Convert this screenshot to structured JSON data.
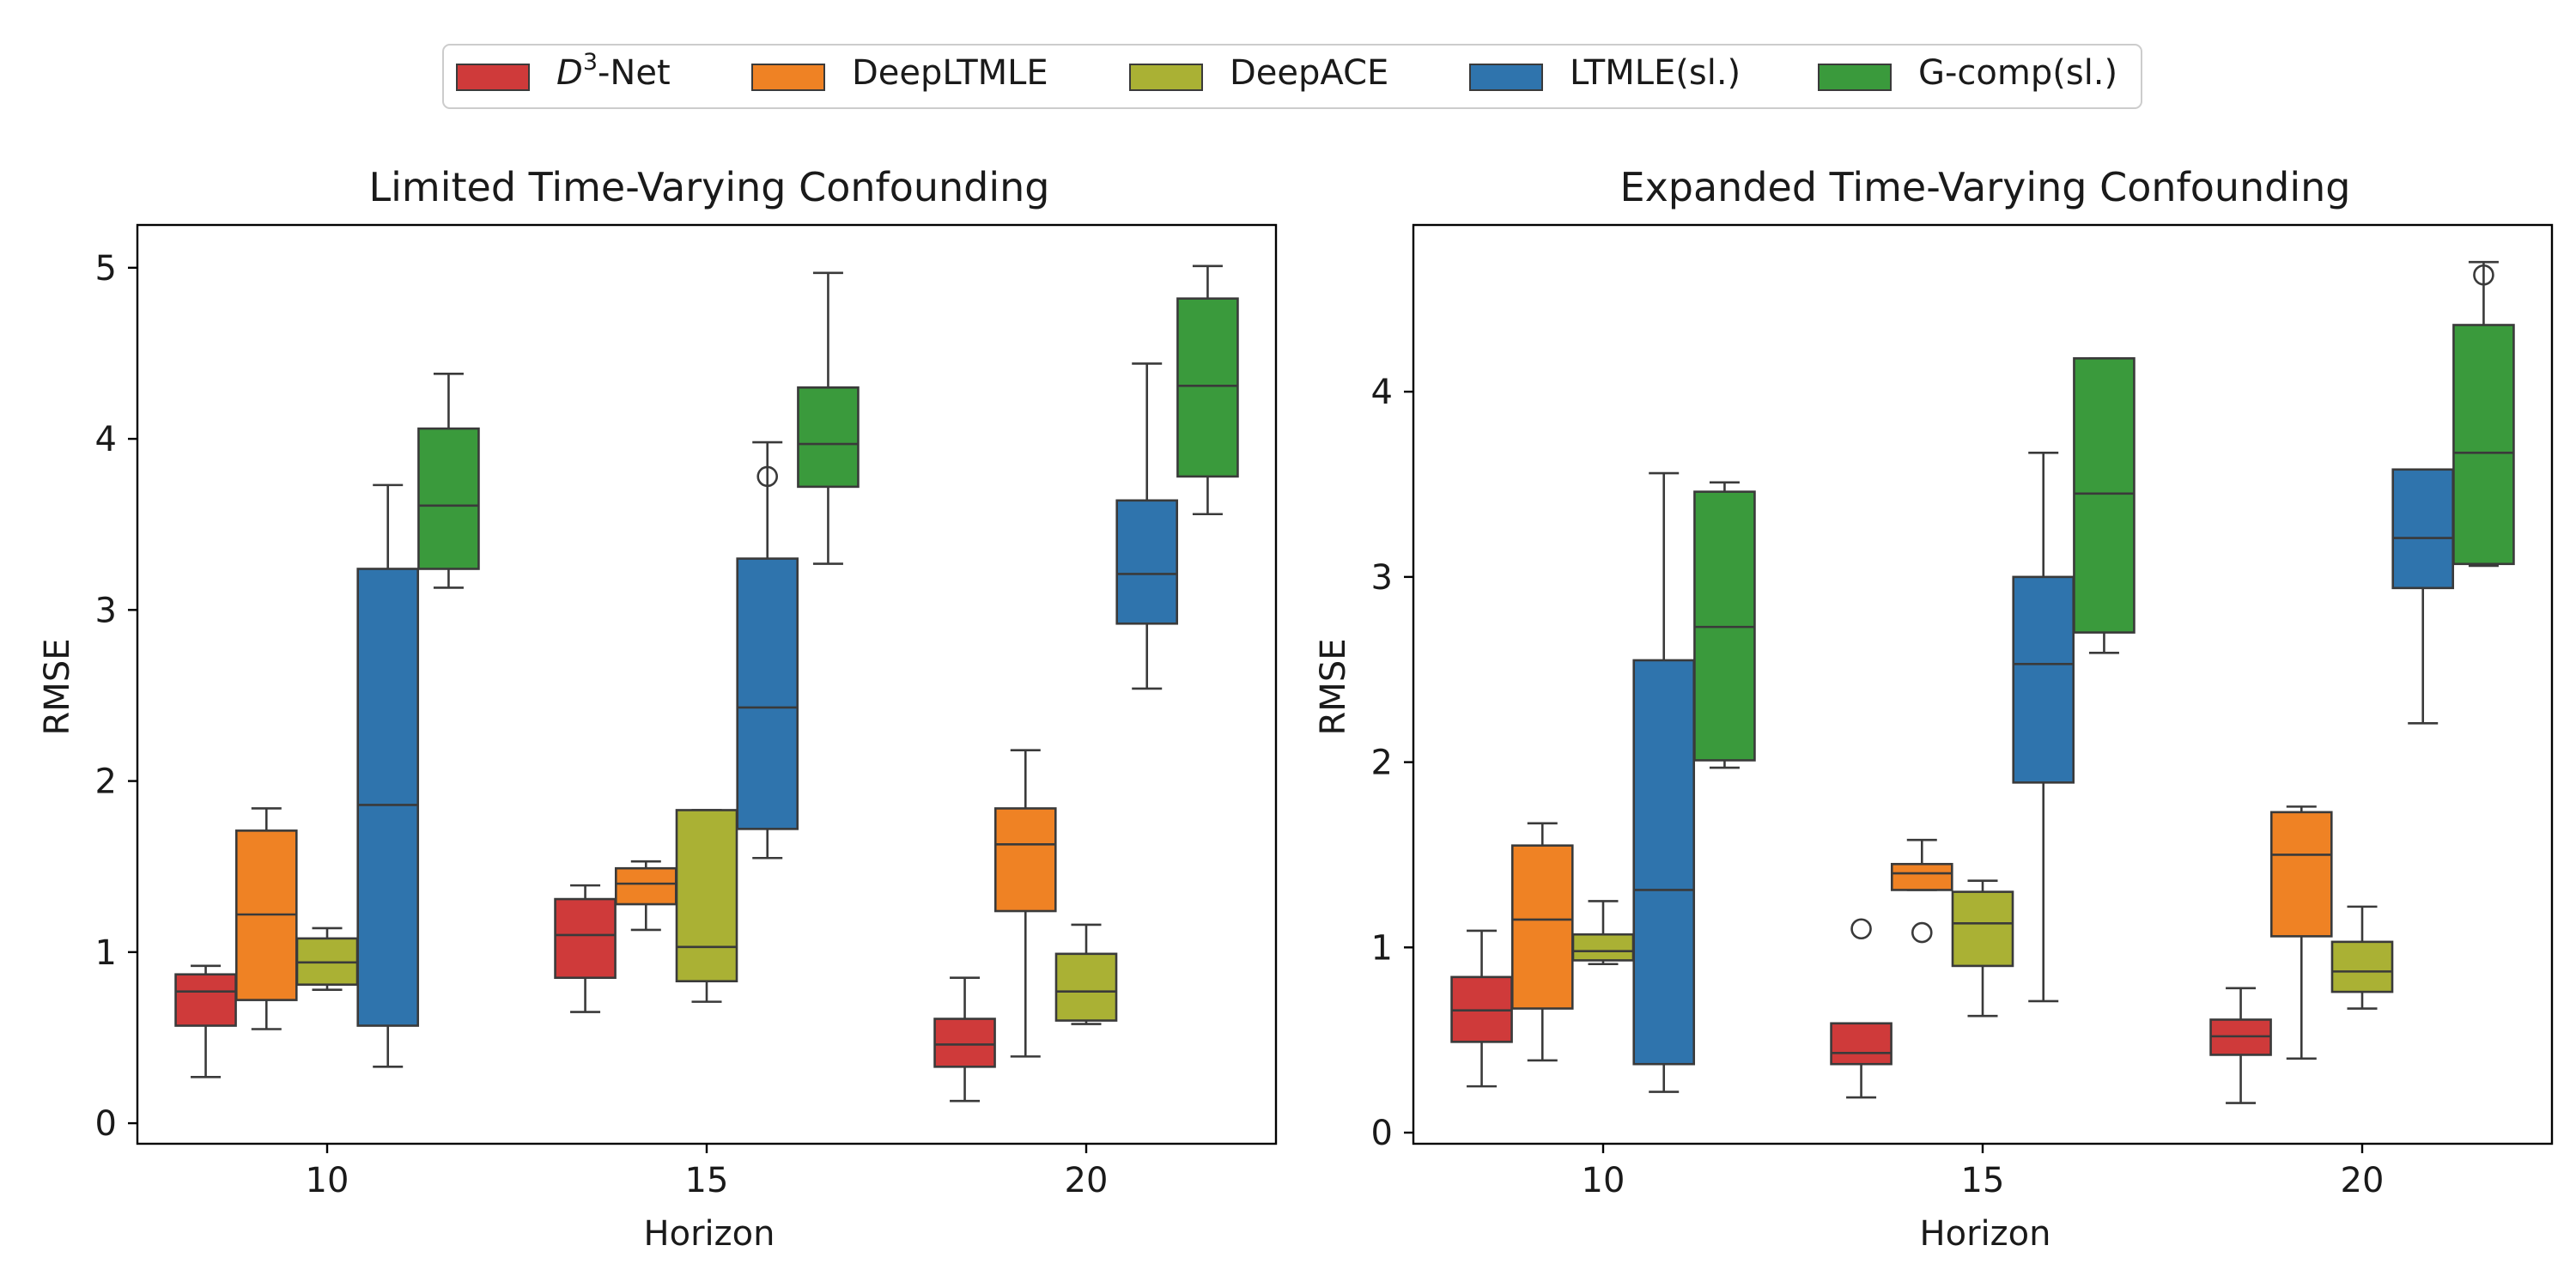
{
  "chart_data": {
    "type": "box",
    "legend": {
      "placement": "top-center",
      "entries": [
        {
          "name": "D³-Net",
          "base": "D",
          "sup": "3",
          "suffix": "-Net",
          "color": "#cf3a3a"
        },
        {
          "name": "DeepLTMLE",
          "color": "#ef8224"
        },
        {
          "name": "DeepACE",
          "color": "#aab134"
        },
        {
          "name": "LTMLE(sl.)",
          "color": "#2f74ad"
        },
        {
          "name": "G-comp(sl.)",
          "color": "#3a9a3c"
        }
      ]
    },
    "panels": [
      {
        "title": "Limited Time-Varying Confounding",
        "xlabel": "Horizon",
        "ylabel": "RMSE",
        "categories": [
          "10",
          "15",
          "20"
        ],
        "yticks": [
          "0",
          "1",
          "2",
          "3",
          "4",
          "5"
        ],
        "ylim": [
          -0.12,
          5.25
        ],
        "series": [
          {
            "name": "D³-Net",
            "boxes": [
              {
                "wlo": 0.27,
                "q1": 0.57,
                "med": 0.77,
                "q3": 0.87,
                "whi": 0.92,
                "outliers": []
              },
              {
                "wlo": 0.65,
                "q1": 0.85,
                "med": 1.1,
                "q3": 1.31,
                "whi": 1.39,
                "outliers": []
              },
              {
                "wlo": 0.13,
                "q1": 0.33,
                "med": 0.46,
                "q3": 0.61,
                "whi": 0.85,
                "outliers": []
              }
            ]
          },
          {
            "name": "DeepLTMLE",
            "boxes": [
              {
                "wlo": 0.55,
                "q1": 0.72,
                "med": 1.22,
                "q3": 1.71,
                "whi": 1.84,
                "outliers": []
              },
              {
                "wlo": 1.13,
                "q1": 1.28,
                "med": 1.4,
                "q3": 1.49,
                "whi": 1.53,
                "outliers": []
              },
              {
                "wlo": 0.39,
                "q1": 1.24,
                "med": 1.63,
                "q3": 1.84,
                "whi": 2.18,
                "outliers": []
              }
            ]
          },
          {
            "name": "DeepACE",
            "boxes": [
              {
                "wlo": 0.78,
                "q1": 0.81,
                "med": 0.94,
                "q3": 1.08,
                "whi": 1.14,
                "outliers": []
              },
              {
                "wlo": 0.71,
                "q1": 0.83,
                "med": 1.03,
                "q3": 1.83,
                "whi": 1.83,
                "outliers": []
              },
              {
                "wlo": 0.58,
                "q1": 0.6,
                "med": 0.77,
                "q3": 0.99,
                "whi": 1.16,
                "outliers": []
              }
            ]
          },
          {
            "name": "LTMLE(sl.)",
            "boxes": [
              {
                "wlo": 0.33,
                "q1": 0.57,
                "med": 1.86,
                "q3": 3.24,
                "whi": 3.73,
                "outliers": []
              },
              {
                "wlo": 1.55,
                "q1": 1.72,
                "med": 2.43,
                "q3": 3.3,
                "whi": 3.98,
                "outliers": [
                  3.78
                ]
              },
              {
                "wlo": 2.54,
                "q1": 2.92,
                "med": 3.21,
                "q3": 3.64,
                "whi": 4.44,
                "outliers": []
              }
            ]
          },
          {
            "name": "G-comp(sl.)",
            "boxes": [
              {
                "wlo": 3.13,
                "q1": 3.24,
                "med": 3.61,
                "q3": 4.06,
                "whi": 4.38,
                "outliers": []
              },
              {
                "wlo": 3.27,
                "q1": 3.72,
                "med": 3.97,
                "q3": 4.3,
                "whi": 4.97,
                "outliers": []
              },
              {
                "wlo": 3.56,
                "q1": 3.78,
                "med": 4.31,
                "q3": 4.82,
                "whi": 5.01,
                "outliers": []
              }
            ]
          }
        ]
      },
      {
        "title": "Expanded Time-Varying Confounding",
        "xlabel": "Horizon",
        "ylabel": "RMSE",
        "categories": [
          "10",
          "15",
          "20"
        ],
        "yticks": [
          "0",
          "1",
          "2",
          "3",
          "4"
        ],
        "ylim": [
          -0.06,
          4.9
        ],
        "series": [
          {
            "name": "D³-Net",
            "boxes": [
              {
                "wlo": 0.25,
                "q1": 0.49,
                "med": 0.66,
                "q3": 0.84,
                "whi": 1.09,
                "outliers": []
              },
              {
                "wlo": 0.19,
                "q1": 0.37,
                "med": 0.43,
                "q3": 0.59,
                "whi": 0.59,
                "outliers": [
                  1.1
                ]
              },
              {
                "wlo": 0.16,
                "q1": 0.42,
                "med": 0.52,
                "q3": 0.61,
                "whi": 0.78,
                "outliers": []
              }
            ]
          },
          {
            "name": "DeepLTMLE",
            "boxes": [
              {
                "wlo": 0.39,
                "q1": 0.67,
                "med": 1.15,
                "q3": 1.55,
                "whi": 1.67,
                "outliers": []
              },
              {
                "wlo": 1.31,
                "q1": 1.31,
                "med": 1.4,
                "q3": 1.45,
                "whi": 1.58,
                "outliers": [
                  1.08
                ]
              },
              {
                "wlo": 0.4,
                "q1": 1.06,
                "med": 1.5,
                "q3": 1.73,
                "whi": 1.76,
                "outliers": []
              }
            ]
          },
          {
            "name": "DeepACE",
            "boxes": [
              {
                "wlo": 0.91,
                "q1": 0.93,
                "med": 0.98,
                "q3": 1.07,
                "whi": 1.25,
                "outliers": []
              },
              {
                "wlo": 0.63,
                "q1": 0.9,
                "med": 1.13,
                "q3": 1.3,
                "whi": 1.36,
                "outliers": []
              },
              {
                "wlo": 0.67,
                "q1": 0.76,
                "med": 0.87,
                "q3": 1.03,
                "whi": 1.22,
                "outliers": []
              }
            ]
          },
          {
            "name": "LTMLE(sl.)",
            "boxes": [
              {
                "wlo": 0.22,
                "q1": 0.37,
                "med": 1.31,
                "q3": 2.55,
                "whi": 3.56,
                "outliers": []
              },
              {
                "wlo": 0.71,
                "q1": 1.89,
                "med": 2.53,
                "q3": 3.0,
                "whi": 3.67,
                "outliers": []
              },
              {
                "wlo": 2.21,
                "q1": 2.94,
                "med": 3.21,
                "q3": 3.58,
                "whi": 3.58,
                "outliers": []
              }
            ]
          },
          {
            "name": "G-comp(sl.)",
            "boxes": [
              {
                "wlo": 1.97,
                "q1": 2.01,
                "med": 2.73,
                "q3": 3.46,
                "whi": 3.51,
                "outliers": []
              },
              {
                "wlo": 2.59,
                "q1": 2.7,
                "med": 3.45,
                "q3": 4.18,
                "whi": 4.18,
                "outliers": []
              },
              {
                "wlo": 3.06,
                "q1": 3.07,
                "med": 3.67,
                "q3": 4.36,
                "whi": 4.7,
                "outliers": [
                  4.63
                ]
              }
            ]
          }
        ]
      }
    ]
  }
}
